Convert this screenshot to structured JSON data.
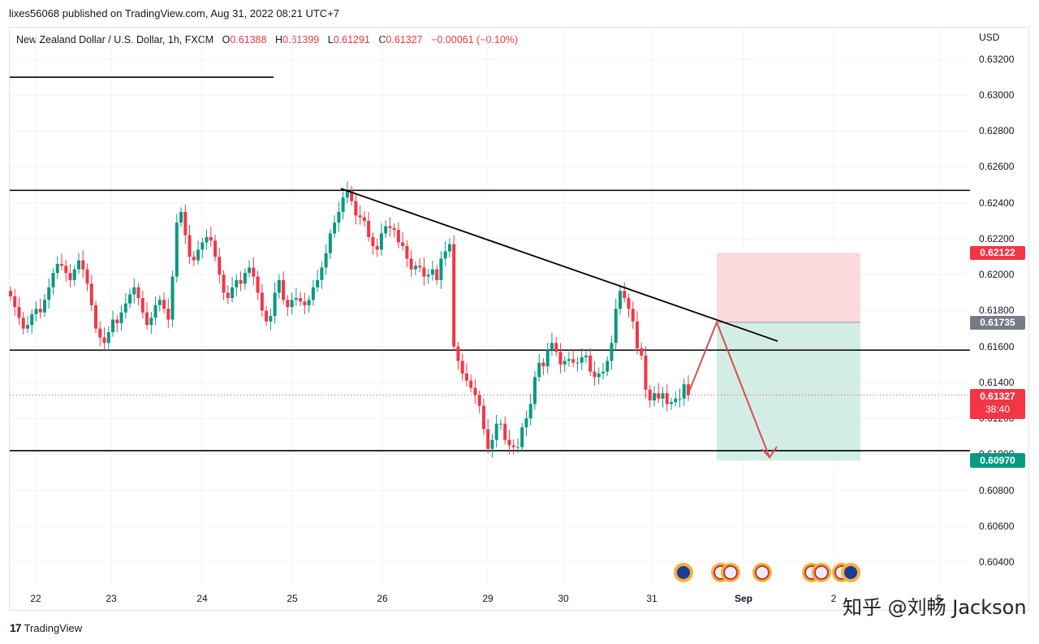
{
  "header": {
    "publisher": "lixes56068 published on TradingView.com, Aug 31, 2022 08:21 UTC+7"
  },
  "legend": {
    "symbol": "New Zealand Dollar / U.S. Dollar, 1h, FXCM",
    "o_label": "O",
    "o_value": "0.61388",
    "h_label": "H",
    "h_value": "0.61399",
    "l_label": "L",
    "l_value": "0.61291",
    "c_label": "C",
    "c_value": "0.61327",
    "change": "−0.00061 (−0.10%)"
  },
  "currency": "USD",
  "price_tags": {
    "stop": {
      "value": "0.62122",
      "color": "#f23645"
    },
    "entry": {
      "value": "0.61735",
      "color": "#787b86"
    },
    "current": {
      "value": "0.61327",
      "countdown": "38:40",
      "color": "#f23645"
    },
    "target": {
      "value": "0.60970",
      "color": "#089981"
    }
  },
  "footer": {
    "brand": "TradingView",
    "logo": "17"
  },
  "watermark": "知乎 @刘畅 Jackson",
  "colors": {
    "up": "#089981",
    "down": "#f23645",
    "risk_zone": "#fcd9dc",
    "reward_zone": "#d2ede6"
  },
  "chart_data": {
    "type": "candlestick",
    "timeframe": "1h",
    "y_axis": {
      "ticks": [
        "0.63200",
        "0.63000",
        "0.62800",
        "0.62600",
        "0.62400",
        "0.62200",
        "0.62000",
        "0.61800",
        "0.61600",
        "0.61400",
        "0.61200",
        "0.61000",
        "0.60800",
        "0.60600",
        "0.60400"
      ],
      "range": [
        0.603,
        0.6335
      ]
    },
    "x_axis": {
      "ticks": [
        "22",
        "23",
        "24",
        "25",
        "26",
        "29",
        "30",
        "31",
        "Sep",
        "2",
        "5"
      ]
    },
    "horizontal_levels": [
      0.6247,
      0.6158,
      0.6102
    ],
    "short_line_level": 0.631,
    "trendline": {
      "from_price": 0.6248,
      "to_price": 0.6163
    },
    "position": {
      "entry": 0.61735,
      "stop": 0.62122,
      "target": 0.6097
    },
    "projection": [
      0.61327,
      0.61735,
      0.6101
    ],
    "calendar_events": [
      "nz-flag-icon",
      "us-flag-icon",
      "us-flag-icon",
      "us-flag-icon",
      "us-flag-icon"
    ],
    "closes": [
      0.6188,
      0.6182,
      0.6176,
      0.617,
      0.6172,
      0.6178,
      0.6181,
      0.6179,
      0.6186,
      0.6193,
      0.6201,
      0.6206,
      0.6205,
      0.6201,
      0.6197,
      0.6203,
      0.6208,
      0.6203,
      0.6195,
      0.6183,
      0.617,
      0.6165,
      0.6162,
      0.6168,
      0.6175,
      0.6173,
      0.6179,
      0.6184,
      0.6189,
      0.6193,
      0.6187,
      0.6179,
      0.6172,
      0.6176,
      0.6183,
      0.6186,
      0.6181,
      0.6175,
      0.6199,
      0.6229,
      0.6235,
      0.6222,
      0.621,
      0.6208,
      0.6214,
      0.6218,
      0.6221,
      0.6219,
      0.621,
      0.62,
      0.619,
      0.6187,
      0.6193,
      0.6197,
      0.6195,
      0.6201,
      0.6204,
      0.6199,
      0.619,
      0.618,
      0.6174,
      0.6177,
      0.619,
      0.6197,
      0.6186,
      0.6182,
      0.6186,
      0.6187,
      0.6185,
      0.6183,
      0.6186,
      0.6193,
      0.6197,
      0.6204,
      0.6212,
      0.6223,
      0.6229,
      0.6235,
      0.6243,
      0.6247,
      0.6241,
      0.6233,
      0.6232,
      0.623,
      0.6221,
      0.6216,
      0.6214,
      0.6223,
      0.6227,
      0.6226,
      0.6225,
      0.6218,
      0.6216,
      0.6209,
      0.6203,
      0.6205,
      0.6204,
      0.6199,
      0.62,
      0.6203,
      0.6197,
      0.6209,
      0.6213,
      0.6217,
      0.616,
      0.6152,
      0.6145,
      0.6141,
      0.6137,
      0.6133,
      0.6127,
      0.6114,
      0.6103,
      0.6108,
      0.6117,
      0.6117,
      0.6108,
      0.6105,
      0.6104,
      0.6104,
      0.6115,
      0.612,
      0.6128,
      0.6143,
      0.6151,
      0.6149,
      0.6158,
      0.6162,
      0.6157,
      0.615,
      0.6152,
      0.6153,
      0.6151,
      0.6151,
      0.6154,
      0.6155,
      0.6146,
      0.6143,
      0.6145,
      0.6146,
      0.6152,
      0.6162,
      0.6181,
      0.6191,
      0.6187,
      0.6181,
      0.6174,
      0.6159,
      0.6155,
      0.6136,
      0.613,
      0.6134,
      0.6131,
      0.6134,
      0.6128,
      0.6129,
      0.6131,
      0.6131,
      0.6139,
      0.6133
    ]
  }
}
